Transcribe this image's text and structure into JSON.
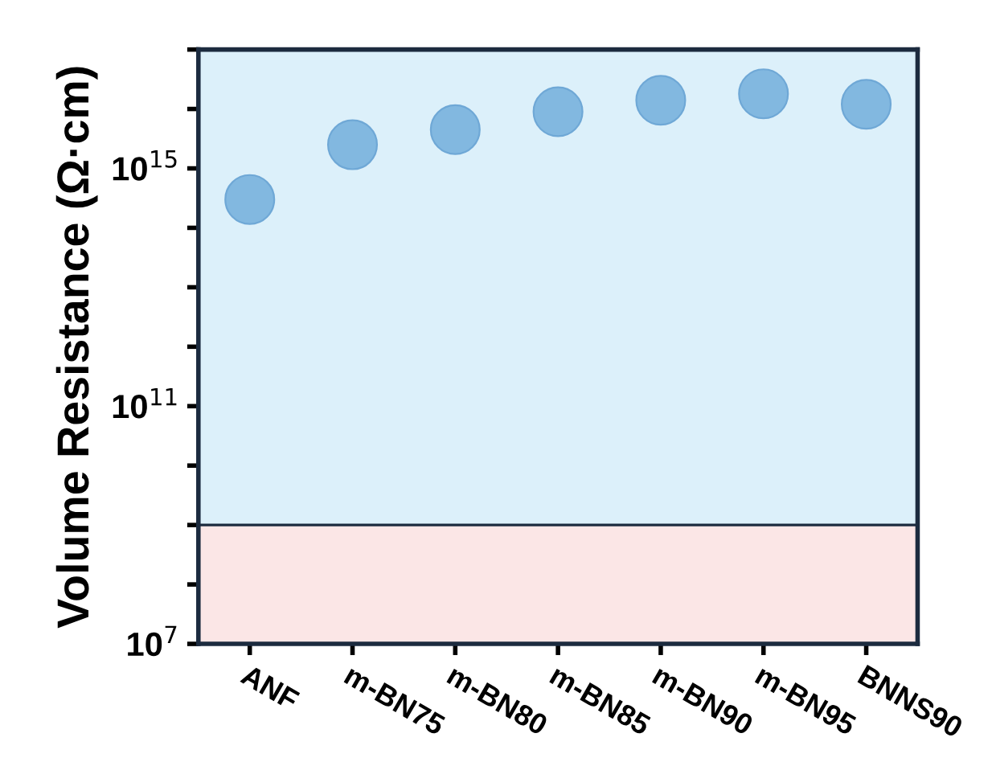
{
  "chart_data": {
    "type": "scatter",
    "ylabel": "Volume Resistance (Ω·cm)",
    "categories": [
      "ANF",
      "m-BN75",
      "m-BN80",
      "m-BN85",
      "m-BN90",
      "m-BN95",
      "BNNS90"
    ],
    "series": [
      {
        "color": "#82b8e0",
        "values": [
          300000000000000.0,
          2500000000000000.0,
          4500000000000000.0,
          9000000000000000.0,
          1.4e+16,
          1.8e+16,
          1.2e+16
        ]
      }
    ],
    "log": true,
    "ylim": [
      10000000.0,
      1e+17
    ],
    "yticks": [
      {
        "value": 10000000.0,
        "label": "10$^{7}$"
      },
      {
        "value": 100000000.0,
        "label": null
      },
      {
        "value": 1000000000.0,
        "label": null
      },
      {
        "value": 10000000000.0,
        "label": null
      },
      {
        "value": 100000000000.0,
        "label": "10$^{11}$"
      },
      {
        "value": 1000000000000.0,
        "label": null
      },
      {
        "value": 10000000000000.0,
        "label": null
      },
      {
        "value": 100000000000000.0,
        "label": null
      },
      {
        "value": 1000000000000000.0,
        "label": "10$^{15}$"
      },
      {
        "value": 1e+16,
        "label": null
      },
      {
        "value": 1e+17,
        "label": null
      }
    ],
    "ref_lines": [
      {
        "axis": "y",
        "value": 1000000000.0,
        "color": "#1c2b3f",
        "line_style": "solid"
      }
    ],
    "bands": [
      {
        "axis": "y",
        "from": 10000000.0,
        "to": 1000000000.0,
        "color": "#fbe6e6"
      },
      {
        "axis": "y",
        "from": 1000000000.0,
        "to": 1e+17,
        "color": "#dcf0fa"
      }
    ],
    "marker": "circle",
    "grid": false,
    "legend": false
  }
}
